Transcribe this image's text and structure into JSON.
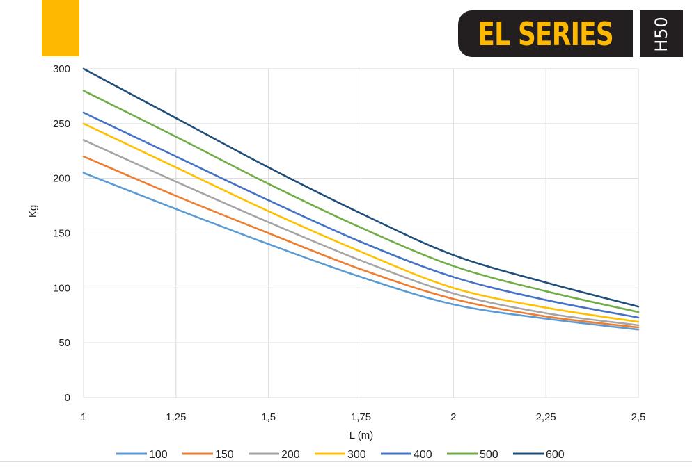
{
  "header": {
    "brand": "EL SERIES",
    "model": "H50",
    "accent_color": "#FFB800",
    "badge_color": "#231F20"
  },
  "chart_data": {
    "type": "line",
    "title": "",
    "xlabel": "L (m)",
    "ylabel": "Kg",
    "xlim": [
      1,
      2.5
    ],
    "ylim": [
      0,
      300
    ],
    "x_ticks": [
      1,
      1.25,
      1.5,
      1.75,
      2,
      2.25,
      2.5
    ],
    "x_tick_labels": [
      "1",
      "1,25",
      "1,5",
      "1,75",
      "2",
      "2,25",
      "2,5"
    ],
    "y_ticks": [
      0,
      50,
      100,
      150,
      200,
      250,
      300
    ],
    "y_tick_labels": [
      "0",
      "50",
      "100",
      "150",
      "200",
      "250",
      "300"
    ],
    "grid": true,
    "legend_position": "bottom",
    "x": [
      1,
      1.25,
      1.5,
      1.75,
      2,
      2.25,
      2.5
    ],
    "series": [
      {
        "name": "100",
        "color": "#5B9BD5",
        "values": [
          205,
          172,
          140,
          110,
          85,
          72,
          62
        ]
      },
      {
        "name": "150",
        "color": "#ED7D31",
        "values": [
          220,
          184,
          150,
          117,
          90,
          74,
          64
        ]
      },
      {
        "name": "200",
        "color": "#A5A5A5",
        "values": [
          235,
          197,
          160,
          125,
          95,
          77,
          66
        ]
      },
      {
        "name": "300",
        "color": "#FFC000",
        "values": [
          250,
          210,
          170,
          133,
          100,
          82,
          69
        ]
      },
      {
        "name": "400",
        "color": "#4472C4",
        "values": [
          260,
          220,
          180,
          142,
          110,
          89,
          73
        ]
      },
      {
        "name": "500",
        "color": "#70AD47",
        "values": [
          280,
          238,
          195,
          155,
          120,
          97,
          78
        ]
      },
      {
        "name": "600",
        "color": "#1F4E79",
        "values": [
          300,
          255,
          210,
          168,
          130,
          105,
          83
        ]
      }
    ]
  }
}
